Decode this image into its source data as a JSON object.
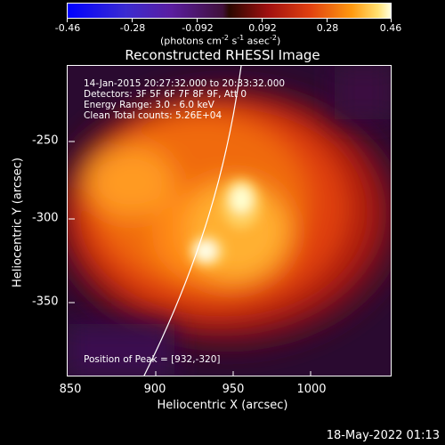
{
  "colorbar": {
    "tick_labels": [
      "-0.46",
      "-0.28",
      "-0.092",
      "0.092",
      "0.28",
      "0.46"
    ],
    "units_main": "(photons cm",
    "units_exp1": "-2",
    "units_mid1": " s",
    "units_exp2": "-1",
    "units_mid2": " asec",
    "units_exp3": "-2",
    "units_end": ")"
  },
  "title": "Reconstructed RHESSI Image",
  "info": {
    "time_range": "14-Jan-2015 20:27:32.000 to 20:33:32.000",
    "detectors": "Detectors: 3F 5F 6F 7F 8F 9F, Att 0",
    "energy": "Energy Range: 3.0 - 6.0 keV",
    "clean": "Clean    Total counts: 5.26E+04",
    "peak": "Position of Peak = [932,-320]"
  },
  "axes": {
    "xlabel": "Heliocentric X (arcsec)",
    "ylabel": "Heliocentric Y (arcsec)",
    "x_ticks": [
      "850",
      "900",
      "950",
      "1000"
    ],
    "y_ticks": [
      "-250",
      "-300",
      "-350"
    ]
  },
  "date": "18-May-2022 01:13"
}
